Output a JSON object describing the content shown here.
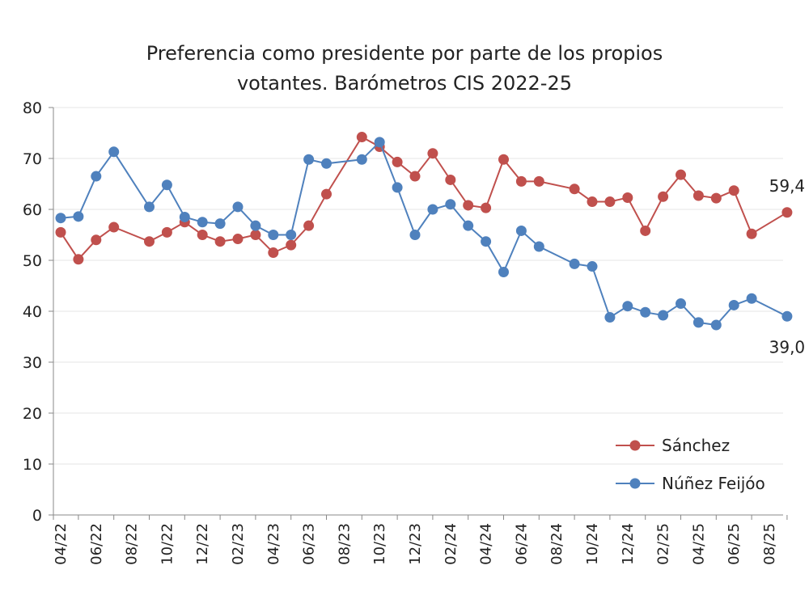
{
  "chart_data": {
    "type": "line",
    "title_line1": "Preferencia como presidente por parte de los propios",
    "title_line2": "votantes. Barómetros CIS 2022-25",
    "xlabel": "",
    "ylabel": "",
    "ylim": [
      0,
      80
    ],
    "yticks": [
      0,
      10,
      20,
      30,
      40,
      50,
      60,
      70,
      80
    ],
    "grid": true,
    "legend_position": "bottom-right",
    "x_tick_labels": [
      "04/22",
      "06/22",
      "08/22",
      "10/22",
      "12/22",
      "02/23",
      "04/23",
      "06/23",
      "08/23",
      "10/23",
      "12/23",
      "02/24",
      "04/24",
      "06/24",
      "08/24",
      "10/24",
      "12/24",
      "02/25",
      "04/25",
      "06/25",
      "08/25"
    ],
    "series": [
      {
        "name": "Sánchez",
        "color": "#c0504d",
        "end_label": "59,4",
        "points": [
          [
            "04/22",
            55.5
          ],
          [
            "05/22",
            50.2
          ],
          [
            "06/22",
            54.0
          ],
          [
            "07/22",
            56.5
          ],
          [
            "09/22",
            53.7
          ],
          [
            "10/22",
            55.5
          ],
          [
            "11/22",
            57.5
          ],
          [
            "12/22",
            55.0
          ],
          [
            "01/23",
            53.7
          ],
          [
            "02/23",
            54.2
          ],
          [
            "03/23",
            55.0
          ],
          [
            "04/23",
            51.5
          ],
          [
            "05/23",
            53.0
          ],
          [
            "06/23",
            56.8
          ],
          [
            "07/23",
            63.0
          ],
          [
            "09/23",
            74.2
          ],
          [
            "10/23",
            72.3
          ],
          [
            "11/23",
            69.3
          ],
          [
            "12/23",
            66.5
          ],
          [
            "01/24",
            71.0
          ],
          [
            "02/24",
            65.8
          ],
          [
            "03/24",
            60.8
          ],
          [
            "04/24",
            60.3
          ],
          [
            "05/24",
            69.8
          ],
          [
            "06/24",
            65.5
          ],
          [
            "07/24",
            65.5
          ],
          [
            "09/24",
            64.0
          ],
          [
            "10/24",
            61.5
          ],
          [
            "11/24",
            61.5
          ],
          [
            "12/24",
            62.3
          ],
          [
            "01/25",
            55.8
          ],
          [
            "02/25",
            62.5
          ],
          [
            "03/25",
            66.8
          ],
          [
            "04/25",
            62.7
          ],
          [
            "05/25",
            62.2
          ],
          [
            "06/25",
            63.7
          ],
          [
            "07/25",
            55.2
          ],
          [
            "09/25",
            59.4
          ]
        ]
      },
      {
        "name": "Núñez Feijóo",
        "color": "#4f81bd",
        "end_label": "39,0",
        "points": [
          [
            "04/22",
            58.3
          ],
          [
            "05/22",
            58.6
          ],
          [
            "06/22",
            66.5
          ],
          [
            "07/22",
            71.3
          ],
          [
            "09/22",
            60.5
          ],
          [
            "10/22",
            64.8
          ],
          [
            "11/22",
            58.5
          ],
          [
            "12/22",
            57.5
          ],
          [
            "01/23",
            57.2
          ],
          [
            "02/23",
            60.5
          ],
          [
            "03/23",
            56.8
          ],
          [
            "04/23",
            55.0
          ],
          [
            "05/23",
            55.0
          ],
          [
            "06/23",
            69.8
          ],
          [
            "07/23",
            69.0
          ],
          [
            "09/23",
            69.8
          ],
          [
            "10/23",
            73.2
          ],
          [
            "11/23",
            64.3
          ],
          [
            "12/23",
            55.0
          ],
          [
            "01/24",
            60.0
          ],
          [
            "02/24",
            61.0
          ],
          [
            "03/24",
            56.8
          ],
          [
            "04/24",
            53.7
          ],
          [
            "05/24",
            47.7
          ],
          [
            "06/24",
            55.8
          ],
          [
            "07/24",
            52.7
          ],
          [
            "09/24",
            49.3
          ],
          [
            "10/24",
            48.8
          ],
          [
            "11/24",
            38.8
          ],
          [
            "12/24",
            41.0
          ],
          [
            "01/25",
            39.8
          ],
          [
            "02/25",
            39.2
          ],
          [
            "03/25",
            41.5
          ],
          [
            "04/25",
            37.8
          ],
          [
            "05/25",
            37.3
          ],
          [
            "06/25",
            41.2
          ],
          [
            "07/25",
            42.5
          ],
          [
            "09/25",
            39.0
          ]
        ]
      }
    ]
  }
}
